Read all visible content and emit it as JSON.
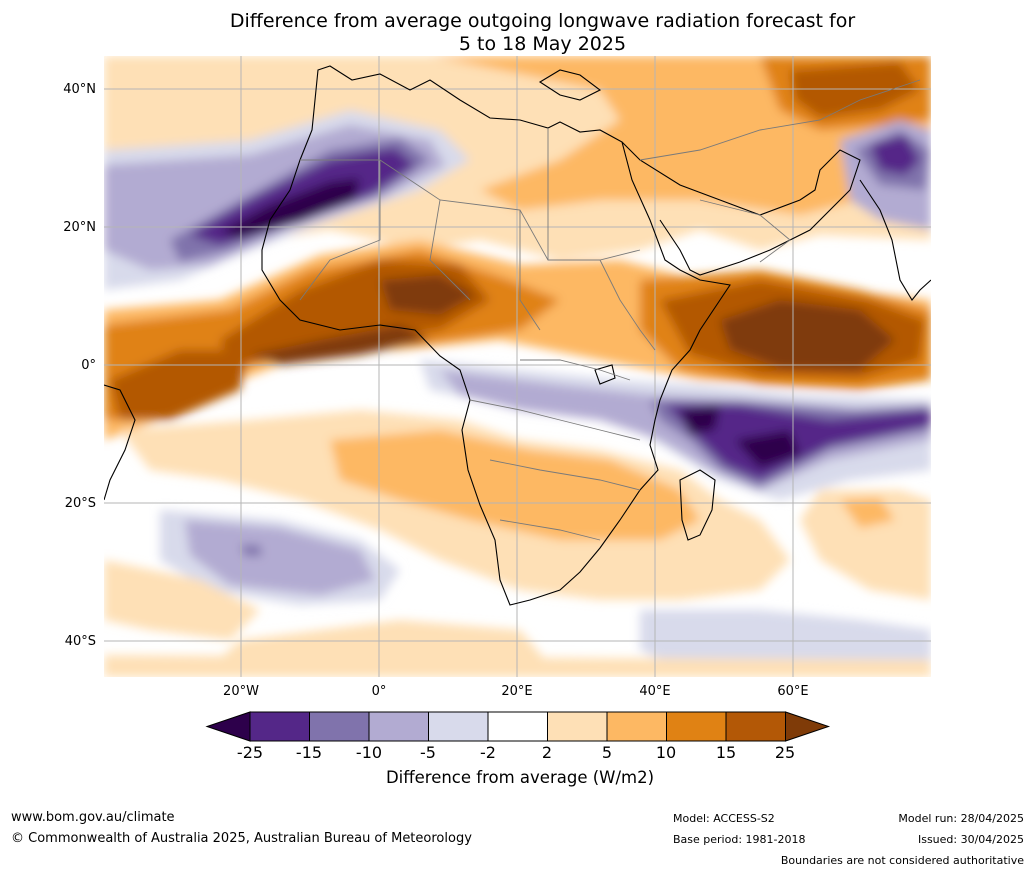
{
  "title_line1": "Difference from average outgoing longwave radiation forecast for",
  "title_line2": "5 to 18 May 2025",
  "lat_labels": [
    "40°N",
    "20°N",
    "0°",
    "20°S",
    "40°S"
  ],
  "lon_labels": [
    "20°W",
    "0°",
    "20°E",
    "40°E",
    "60°E"
  ],
  "colorbar": {
    "ticks": [
      "-25",
      "-15",
      "-10",
      "-5",
      "-2",
      "2",
      "5",
      "10",
      "15",
      "25"
    ],
    "label": "Difference from average (W/m2)",
    "colors": [
      "#2d004b",
      "#542788",
      "#8073ac",
      "#b2abd2",
      "#d8daeb",
      "#ffffff",
      "#fee0b6",
      "#fdb863",
      "#e08214",
      "#b35806",
      "#7f3b08"
    ]
  },
  "footer": {
    "website": "www.bom.gov.au/climate",
    "copyright": "© Commonwealth of Australia 2025, Australian Bureau of Meteorology",
    "model": "Model: ACCESS-S2",
    "base_period": "Base period: 1981-2018",
    "model_run": "Model run: 28/04/2025",
    "issued": "Issued: 30/04/2025",
    "disclaimer": "Boundaries are not considered authoritative"
  }
}
